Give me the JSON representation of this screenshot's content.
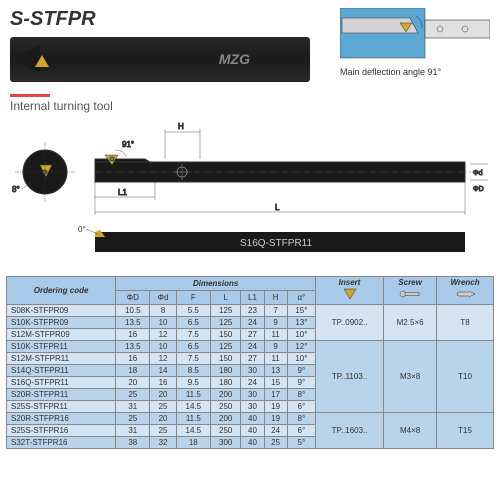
{
  "product_code": "S-STFPR",
  "brand": "MZG",
  "angle_label": "Main deflection angle 91°",
  "subtitle": "Internal turning tool",
  "bar_label": "S16Q-STFPR11",
  "drawing": {
    "angle_top": "91°",
    "angle_side": "8°",
    "angle_bottom": "0°",
    "dims": [
      "H",
      "L1",
      "L",
      "Φd",
      "ΦD"
    ]
  },
  "table": {
    "headers": {
      "ordering": "Ordering code",
      "dimensions": "Dimensions",
      "insert": "Insert",
      "screw": "Screw",
      "wrench": "Wrench",
      "dim_cols": [
        "ΦD",
        "Φd",
        "F",
        "L",
        "L1",
        "H",
        "α°"
      ]
    },
    "rows": [
      {
        "m": "S08K-STFPR09",
        "d": [
          10.5,
          8,
          5.5,
          125,
          23,
          7,
          "15°"
        ],
        "ins": "TP..0902..",
        "scr": "M2.5×6",
        "wr": "T8",
        "g": 0
      },
      {
        "m": "S10K-STFPR09",
        "d": [
          13.5,
          10,
          6.5,
          125,
          24,
          9,
          "13°"
        ],
        "ins": "",
        "scr": "",
        "wr": "",
        "g": 0
      },
      {
        "m": "S12M-STFPR09",
        "d": [
          16,
          12,
          7.5,
          150,
          27,
          11,
          "10°"
        ],
        "ins": "",
        "scr": "",
        "wr": "",
        "g": 0
      },
      {
        "m": "S10K-STFPR11",
        "d": [
          13.5,
          10,
          6.5,
          125,
          24,
          9,
          "12°"
        ],
        "ins": "TP..1103..",
        "scr": "M3×8",
        "wr": "T10",
        "g": 1
      },
      {
        "m": "S12M-STFPR11",
        "d": [
          16,
          12,
          7.5,
          150,
          27,
          11,
          "10°"
        ],
        "ins": "",
        "scr": "",
        "wr": "",
        "g": 1
      },
      {
        "m": "S14Q-STFPR11",
        "d": [
          18,
          14,
          8.5,
          180,
          30,
          13,
          "9°"
        ],
        "ins": "",
        "scr": "",
        "wr": "",
        "g": 1
      },
      {
        "m": "S16Q-STFPR11",
        "d": [
          20,
          16,
          9.5,
          180,
          24,
          15,
          "9°"
        ],
        "ins": "",
        "scr": "",
        "wr": "",
        "g": 1
      },
      {
        "m": "S20R-STFPR11",
        "d": [
          25,
          20,
          11.5,
          200,
          30,
          17,
          "8°"
        ],
        "ins": "",
        "scr": "",
        "wr": "",
        "g": 1
      },
      {
        "m": "S25S-STFPR11",
        "d": [
          31,
          25,
          14.5,
          250,
          30,
          19,
          "6°"
        ],
        "ins": "",
        "scr": "",
        "wr": "",
        "g": 1
      },
      {
        "m": "S20R-STFPR16",
        "d": [
          25,
          20,
          11.5,
          200,
          40,
          19,
          "8°"
        ],
        "ins": "TP..1603..",
        "scr": "M4×8",
        "wr": "T15",
        "g": 2
      },
      {
        "m": "S25S-STFPR16",
        "d": [
          31,
          25,
          14.5,
          250,
          40,
          24,
          "6°"
        ],
        "ins": "",
        "scr": "",
        "wr": "",
        "g": 2
      },
      {
        "m": "S32T-STFPR16",
        "d": [
          38,
          32,
          18,
          300,
          40,
          25,
          "5°"
        ],
        "ins": "",
        "scr": "",
        "wr": "",
        "g": 2
      }
    ],
    "groups": [
      {
        "start": 0,
        "span": 3
      },
      {
        "start": 3,
        "span": 6
      },
      {
        "start": 9,
        "span": 3
      }
    ]
  },
  "colors": {
    "header_bg": "#a8cae8",
    "row_odd": "#d4e4f2",
    "row_even": "#b8d4ea",
    "accent": "#e84545",
    "insert_color": "#d4a52b",
    "diagram_bg": "#5ba8d4"
  }
}
